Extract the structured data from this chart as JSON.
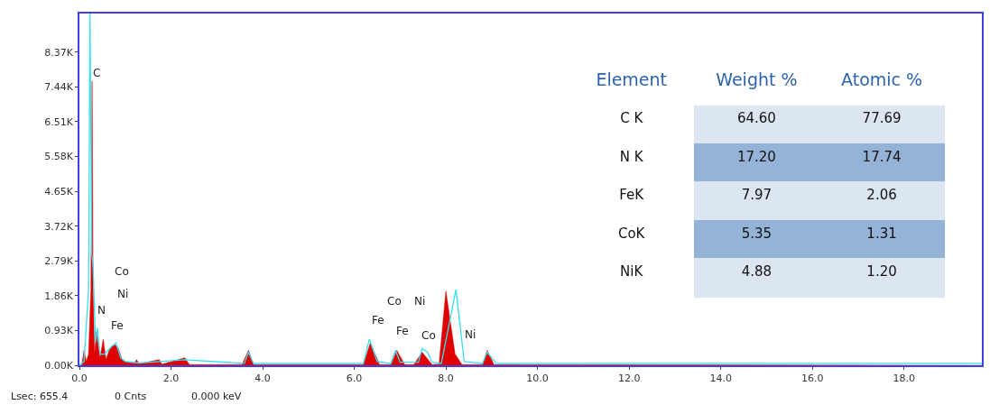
{
  "chart_data": [
    {
      "type": "area",
      "xlim": [
        0,
        19.7
      ],
      "ylim": [
        0,
        9400
      ],
      "xticks": [
        {
          "value": 0,
          "label": "0.0"
        },
        {
          "value": 2,
          "label": "2.0"
        },
        {
          "value": 4,
          "label": "4.0"
        },
        {
          "value": 6,
          "label": "6.0"
        },
        {
          "value": 8,
          "label": "8.0"
        },
        {
          "value": 10,
          "label": "10.0"
        },
        {
          "value": 12,
          "label": "12.0"
        },
        {
          "value": 14,
          "label": "14.0"
        },
        {
          "value": 16,
          "label": "16.0"
        },
        {
          "value": 18,
          "label": "18.0"
        }
      ],
      "yticks": [
        {
          "value": 0,
          "label": "0.00K"
        },
        {
          "value": 930,
          "label": "0.93K"
        },
        {
          "value": 1860,
          "label": "1.86K"
        },
        {
          "value": 2790,
          "label": "2.79K"
        },
        {
          "value": 3720,
          "label": "3.72K"
        },
        {
          "value": 4650,
          "label": "4.65K"
        },
        {
          "value": 5580,
          "label": "5.58K"
        },
        {
          "value": 6510,
          "label": "6.51K"
        },
        {
          "value": 7440,
          "label": "7.44K"
        },
        {
          "value": 8370,
          "label": "8.37K"
        }
      ],
      "series": [
        {
          "color": "#e00000",
          "x": [
            0,
            0.05,
            0.1,
            0.15,
            0.2,
            0.25,
            0.277,
            0.3,
            0.33,
            0.37,
            0.45,
            0.52,
            0.58,
            0.65,
            0.71,
            0.78,
            0.85,
            0.93,
            1.0,
            1.2,
            1.25,
            1.3,
            1.74,
            1.8,
            2.3,
            2.4,
            3.55,
            3.69,
            3.8,
            6.2,
            6.35,
            6.55,
            6.8,
            6.93,
            7.1,
            7.3,
            7.48,
            7.7,
            7.85,
            8.0,
            8.2,
            8.35,
            8.8,
            8.9,
            9.05,
            19.7
          ],
          "values": [
            0,
            0,
            400,
            100,
            300,
            2000,
            7600,
            2000,
            300,
            900,
            200,
            700,
            150,
            400,
            500,
            550,
            450,
            150,
            100,
            60,
            150,
            40,
            150,
            30,
            200,
            20,
            20,
            400,
            20,
            20,
            600,
            20,
            20,
            400,
            20,
            20,
            350,
            20,
            30,
            1980,
            300,
            20,
            20,
            400,
            20,
            0
          ]
        },
        {
          "type": "line",
          "color": "#33e0f0",
          "x": [
            0,
            0.1,
            0.2,
            0.23,
            0.27,
            0.3,
            0.35,
            0.39,
            0.45,
            0.55,
            0.7,
            0.8,
            0.9,
            1.0,
            1.3,
            1.74,
            2.3,
            3.6,
            3.69,
            3.8,
            6.2,
            6.33,
            6.5,
            6.8,
            6.9,
            7.0,
            7.4,
            7.48,
            7.6,
            7.7,
            7.9,
            8.22,
            8.4,
            8.8,
            8.9,
            9.1,
            19.7
          ],
          "values": [
            0,
            100,
            2000,
            9400,
            3000,
            2600,
            600,
            1000,
            300,
            300,
            500,
            600,
            200,
            100,
            60,
            100,
            150,
            50,
            350,
            50,
            50,
            700,
            100,
            50,
            400,
            80,
            80,
            450,
            350,
            80,
            50,
            2020,
            100,
            50,
            350,
            50,
            50
          ]
        }
      ],
      "annotations": [
        "C",
        "Co",
        "Ni",
        "N",
        "Fe",
        "Fe",
        "Co",
        "Ni",
        "Fe",
        "Co",
        "Ni",
        "Lsec: 655.4",
        "0 Cnts",
        "0.000 keV"
      ]
    },
    {
      "type": "other",
      "xlabel": "Element",
      "categories": [
        "C K",
        "N K",
        "FeK",
        "CoK",
        "NiK"
      ],
      "series": [
        {
          "name": "Weight %",
          "colors": [
            "#dce6f1",
            "#95b3d7",
            "#dce6f1",
            "#95b3d7",
            "#dce6f1"
          ],
          "values": [
            64.6,
            17.2,
            7.97,
            5.35,
            4.88
          ],
          "value_labels": [
            "64.60",
            "17.20",
            "7.97",
            "5.35",
            "4.88"
          ]
        },
        {
          "name": "Atomic %",
          "colors": [
            "#dce6f1",
            "#95b3d7",
            "#dce6f1",
            "#95b3d7",
            "#dce6f1"
          ],
          "values": [
            77.69,
            17.74,
            2.06,
            1.31,
            1.2
          ],
          "value_labels": [
            "77.69",
            "17.74",
            "2.06",
            "1.31",
            "1.20"
          ]
        }
      ]
    }
  ]
}
